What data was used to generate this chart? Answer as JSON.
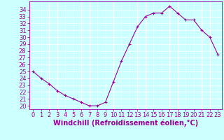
{
  "x": [
    0,
    1,
    2,
    3,
    4,
    5,
    6,
    7,
    8,
    9,
    10,
    11,
    12,
    13,
    14,
    15,
    16,
    17,
    18,
    19,
    20,
    21,
    22,
    23
  ],
  "y": [
    25.0,
    24.0,
    23.2,
    22.2,
    21.5,
    21.0,
    20.5,
    20.0,
    20.0,
    20.5,
    23.5,
    26.5,
    29.0,
    31.5,
    33.0,
    33.5,
    33.5,
    34.5,
    33.5,
    32.5,
    32.5,
    31.0,
    30.0,
    27.5
  ],
  "line_color": "#990099",
  "marker": "+",
  "marker_size": 3,
  "bg_color": "#ccffff",
  "grid_color": "#ffffff",
  "tick_color": "#990099",
  "label_color": "#990099",
  "xlabel": "Windchill (Refroidissement éolien,°C)",
  "xlim": [
    -0.5,
    23.5
  ],
  "ylim": [
    19.5,
    35.2
  ],
  "yticks": [
    20,
    21,
    22,
    23,
    24,
    25,
    26,
    27,
    28,
    29,
    30,
    31,
    32,
    33,
    34
  ],
  "xticks": [
    0,
    1,
    2,
    3,
    4,
    5,
    6,
    7,
    8,
    9,
    10,
    11,
    12,
    13,
    14,
    15,
    16,
    17,
    18,
    19,
    20,
    21,
    22,
    23
  ],
  "font_size": 6,
  "xlabel_font_size": 7
}
